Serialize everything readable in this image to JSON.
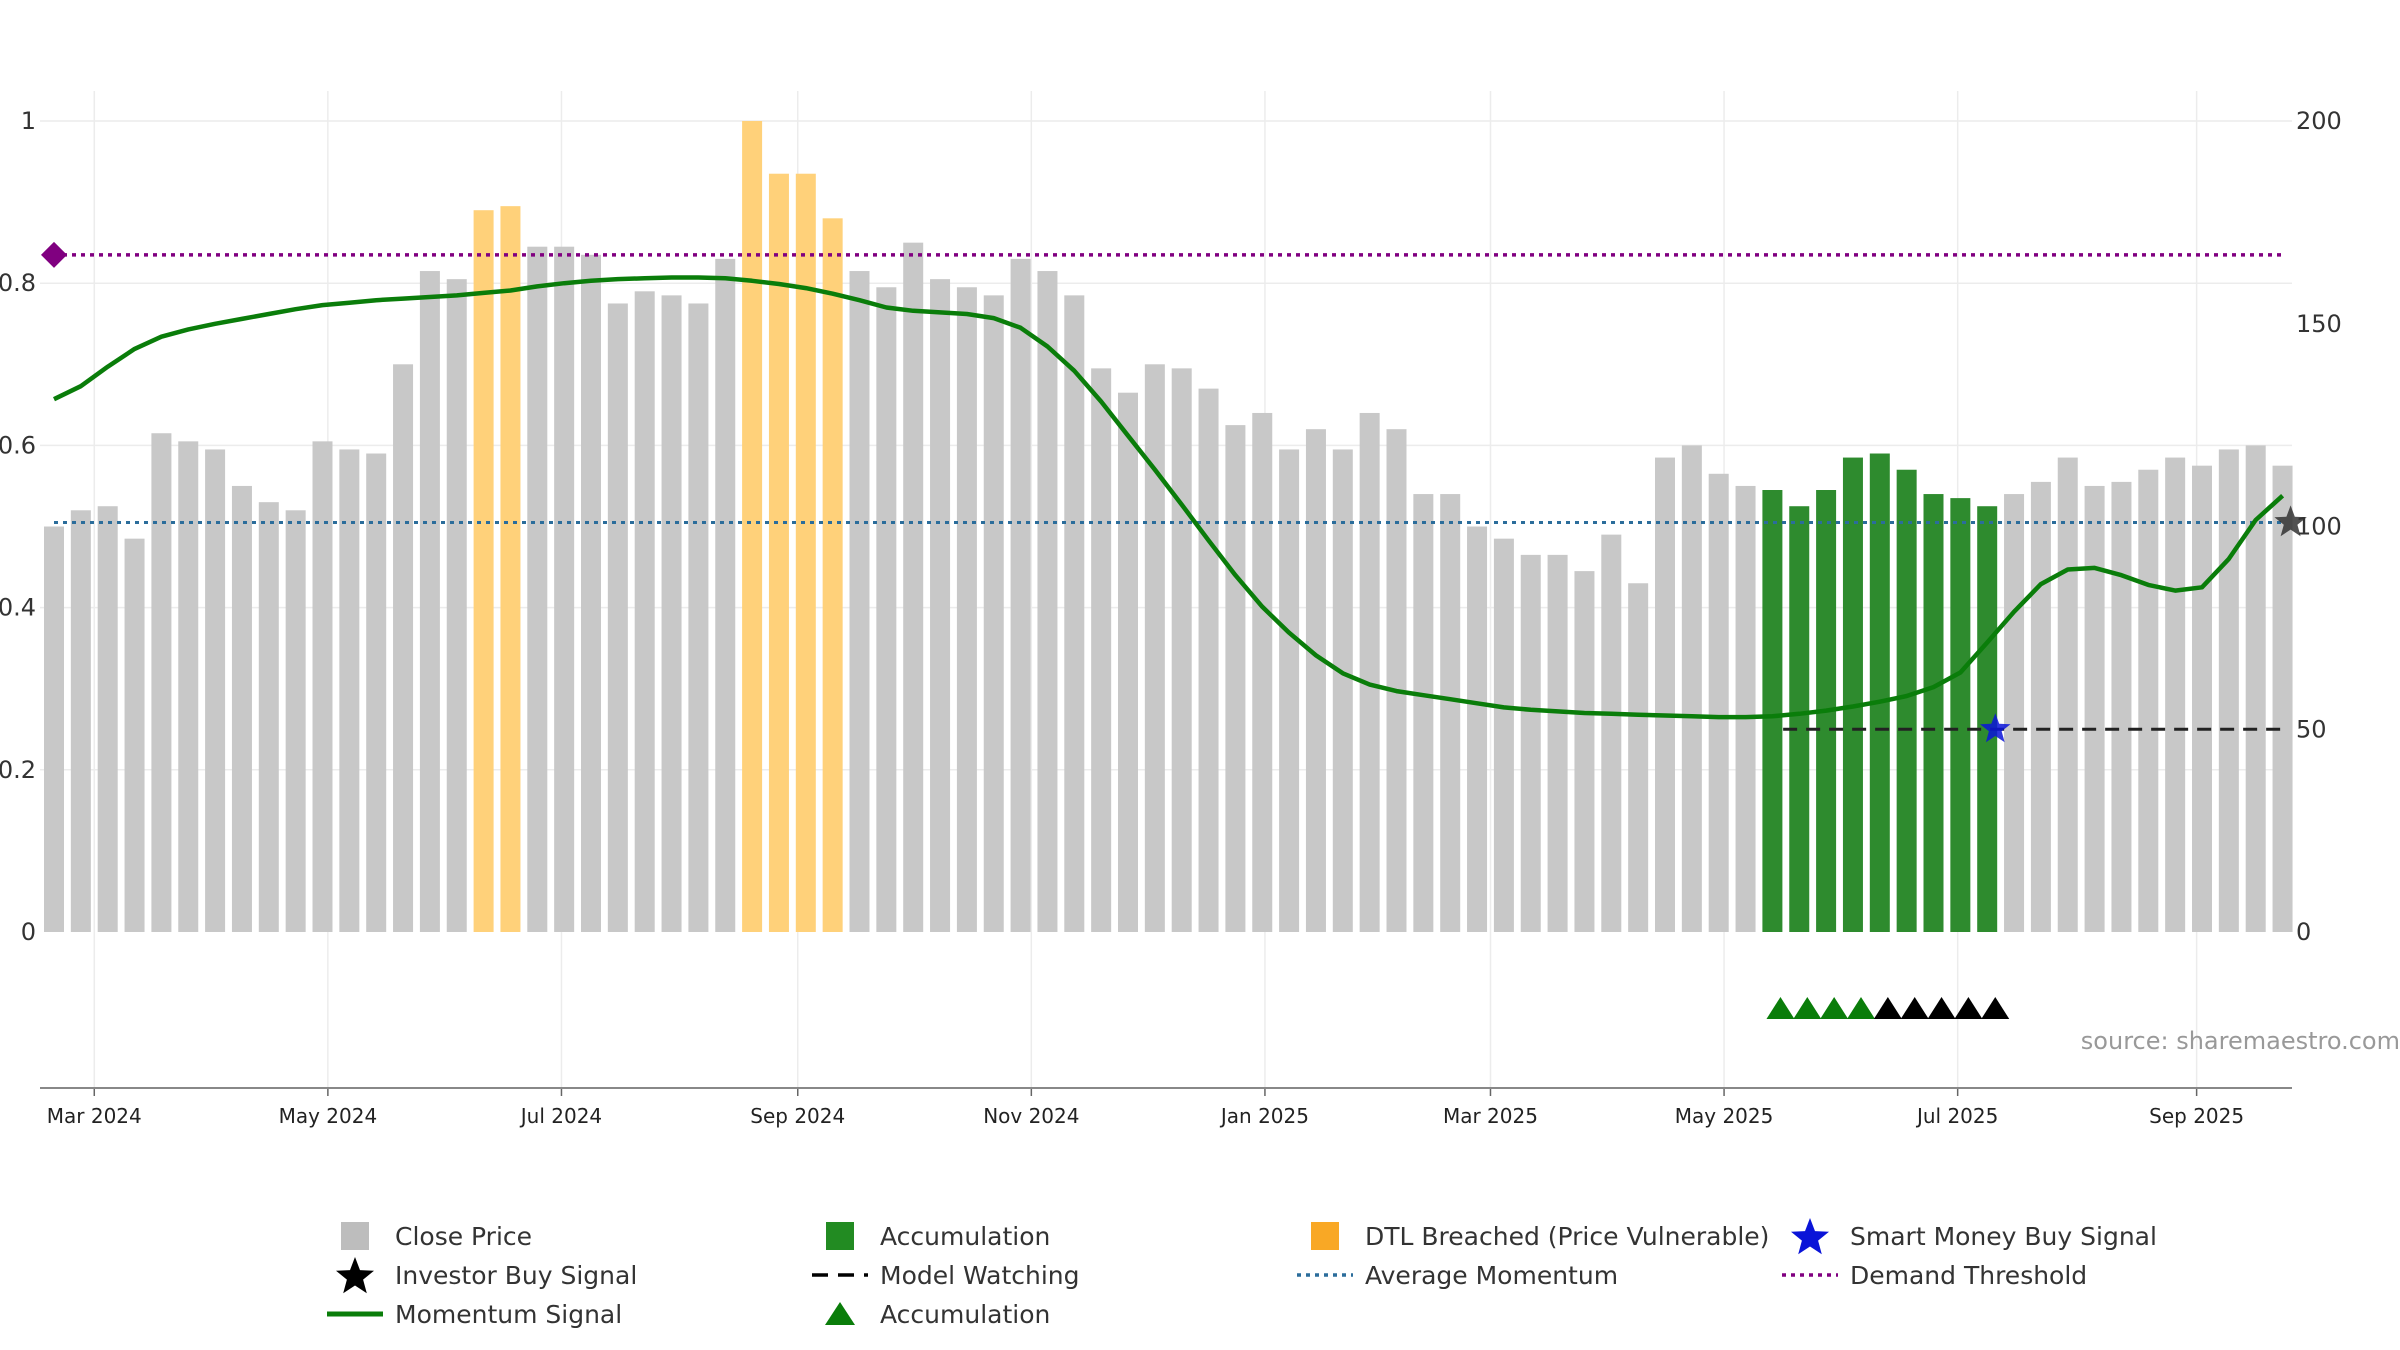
{
  "chart_data": {
    "type": "bar",
    "title": "",
    "xlabel": "",
    "ylabel": "",
    "y_left_lim": [
      0,
      1
    ],
    "y_left_ticks": [
      0,
      0.2,
      0.4,
      0.6,
      0.8,
      1
    ],
    "y_left_tick_labels": [
      "0",
      "0.2",
      "0.4",
      "0.6",
      "0.8",
      "1"
    ],
    "y_right_lim": [
      0,
      200
    ],
    "y_right_ticks": [
      0,
      50,
      100,
      150,
      200
    ],
    "y_right_tick_labels": [
      "0",
      "50",
      "100",
      "150",
      "200"
    ],
    "x_tick_labels": [
      "Mar 2024",
      "May 2024",
      "Jul 2024",
      "Sep 2024",
      "Nov 2024",
      "Jan 2025",
      "Mar 2025",
      "May 2025",
      "Jul 2025",
      "Sep 2025"
    ],
    "x_tick_weeks": [
      1.5,
      10.2,
      18.9,
      27.7,
      36.4,
      45.1,
      53.5,
      62.2,
      70.9,
      79.8
    ],
    "source": "source: sharemaestro.com",
    "grid": true,
    "colors": {
      "close": "#c8c8c8",
      "accumulation": "#2e8b2e",
      "dtl": "#ffd17a",
      "momentum": "#0a7d0a",
      "avg_momentum": "#2b6d9b",
      "demand": "#800080",
      "model_watching": "#222222",
      "smart_money": "#0a14d8",
      "investor": "#000000"
    },
    "close_price": [
      {
        "week": 0,
        "value": 100,
        "status": "normal"
      },
      {
        "week": 1,
        "value": 104,
        "status": "normal"
      },
      {
        "week": 2,
        "value": 105,
        "status": "normal"
      },
      {
        "week": 3,
        "value": 97,
        "status": "normal"
      },
      {
        "week": 4,
        "value": 123,
        "status": "normal"
      },
      {
        "week": 5,
        "value": 121,
        "status": "normal"
      },
      {
        "week": 6,
        "value": 119,
        "status": "normal"
      },
      {
        "week": 7,
        "value": 110,
        "status": "normal"
      },
      {
        "week": 8,
        "value": 106,
        "status": "normal"
      },
      {
        "week": 9,
        "value": 104,
        "status": "normal"
      },
      {
        "week": 10,
        "value": 121,
        "status": "normal"
      },
      {
        "week": 11,
        "value": 119,
        "status": "normal"
      },
      {
        "week": 12,
        "value": 118,
        "status": "normal"
      },
      {
        "week": 13,
        "value": 140,
        "status": "normal"
      },
      {
        "week": 14,
        "value": 163,
        "status": "normal"
      },
      {
        "week": 15,
        "value": 161,
        "status": "normal"
      },
      {
        "week": 16,
        "value": 178,
        "status": "dtl"
      },
      {
        "week": 17,
        "value": 179,
        "status": "dtl"
      },
      {
        "week": 18,
        "value": 169,
        "status": "normal"
      },
      {
        "week": 19,
        "value": 169,
        "status": "normal"
      },
      {
        "week": 20,
        "value": 167,
        "status": "normal"
      },
      {
        "week": 21,
        "value": 155,
        "status": "normal"
      },
      {
        "week": 22,
        "value": 158,
        "status": "normal"
      },
      {
        "week": 23,
        "value": 157,
        "status": "normal"
      },
      {
        "week": 24,
        "value": 155,
        "status": "normal"
      },
      {
        "week": 25,
        "value": 166,
        "status": "normal"
      },
      {
        "week": 26,
        "value": 200,
        "status": "dtl"
      },
      {
        "week": 27,
        "value": 187,
        "status": "dtl"
      },
      {
        "week": 28,
        "value": 187,
        "status": "dtl"
      },
      {
        "week": 29,
        "value": 176,
        "status": "dtl"
      },
      {
        "week": 30,
        "value": 163,
        "status": "normal"
      },
      {
        "week": 31,
        "value": 159,
        "status": "normal"
      },
      {
        "week": 32,
        "value": 170,
        "status": "normal"
      },
      {
        "week": 33,
        "value": 161,
        "status": "normal"
      },
      {
        "week": 34,
        "value": 159,
        "status": "normal"
      },
      {
        "week": 35,
        "value": 157,
        "status": "normal"
      },
      {
        "week": 36,
        "value": 166,
        "status": "normal"
      },
      {
        "week": 37,
        "value": 163,
        "status": "normal"
      },
      {
        "week": 38,
        "value": 157,
        "status": "normal"
      },
      {
        "week": 39,
        "value": 139,
        "status": "normal"
      },
      {
        "week": 40,
        "value": 133,
        "status": "normal"
      },
      {
        "week": 41,
        "value": 140,
        "status": "normal"
      },
      {
        "week": 42,
        "value": 139,
        "status": "normal"
      },
      {
        "week": 43,
        "value": 134,
        "status": "normal"
      },
      {
        "week": 44,
        "value": 125,
        "status": "normal"
      },
      {
        "week": 45,
        "value": 128,
        "status": "normal"
      },
      {
        "week": 46,
        "value": 119,
        "status": "normal"
      },
      {
        "week": 47,
        "value": 124,
        "status": "normal"
      },
      {
        "week": 48,
        "value": 119,
        "status": "normal"
      },
      {
        "week": 49,
        "value": 128,
        "status": "normal"
      },
      {
        "week": 50,
        "value": 124,
        "status": "normal"
      },
      {
        "week": 51,
        "value": 108,
        "status": "normal"
      },
      {
        "week": 52,
        "value": 108,
        "status": "normal"
      },
      {
        "week": 53,
        "value": 100,
        "status": "normal"
      },
      {
        "week": 54,
        "value": 97,
        "status": "normal"
      },
      {
        "week": 55,
        "value": 93,
        "status": "normal"
      },
      {
        "week": 56,
        "value": 93,
        "status": "normal"
      },
      {
        "week": 57,
        "value": 89,
        "status": "normal"
      },
      {
        "week": 58,
        "value": 98,
        "status": "normal"
      },
      {
        "week": 59,
        "value": 86,
        "status": "normal"
      },
      {
        "week": 60,
        "value": 117,
        "status": "normal"
      },
      {
        "week": 61,
        "value": 120,
        "status": "normal"
      },
      {
        "week": 62,
        "value": 113,
        "status": "normal"
      },
      {
        "week": 63,
        "value": 110,
        "status": "normal"
      },
      {
        "week": 64,
        "value": 109,
        "status": "accumulation"
      },
      {
        "week": 65,
        "value": 105,
        "status": "accumulation"
      },
      {
        "week": 66,
        "value": 109,
        "status": "accumulation"
      },
      {
        "week": 67,
        "value": 117,
        "status": "accumulation"
      },
      {
        "week": 68,
        "value": 118,
        "status": "accumulation"
      },
      {
        "week": 69,
        "value": 114,
        "status": "accumulation"
      },
      {
        "week": 70,
        "value": 108,
        "status": "accumulation"
      },
      {
        "week": 71,
        "value": 107,
        "status": "accumulation"
      },
      {
        "week": 72,
        "value": 105,
        "status": "accumulation"
      },
      {
        "week": 73,
        "value": 108,
        "status": "normal"
      },
      {
        "week": 74,
        "value": 111,
        "status": "normal"
      },
      {
        "week": 75,
        "value": 117,
        "status": "normal"
      },
      {
        "week": 76,
        "value": 110,
        "status": "normal"
      },
      {
        "week": 77,
        "value": 111,
        "status": "normal"
      },
      {
        "week": 78,
        "value": 114,
        "status": "normal"
      },
      {
        "week": 79,
        "value": 117,
        "status": "normal"
      },
      {
        "week": 80,
        "value": 115,
        "status": "normal"
      },
      {
        "week": 81,
        "value": 119,
        "status": "normal"
      },
      {
        "week": 82,
        "value": 120,
        "status": "normal"
      },
      {
        "week": 83,
        "value": 115,
        "status": "normal"
      }
    ],
    "momentum_signal": [
      [
        0,
        0.657
      ],
      [
        1,
        0.673
      ],
      [
        2,
        0.697
      ],
      [
        3,
        0.719
      ],
      [
        4,
        0.734
      ],
      [
        5,
        0.743
      ],
      [
        6,
        0.75
      ],
      [
        7,
        0.756
      ],
      [
        8,
        0.762
      ],
      [
        9,
        0.768
      ],
      [
        10,
        0.773
      ],
      [
        11,
        0.776
      ],
      [
        12,
        0.779
      ],
      [
        13,
        0.781
      ],
      [
        14,
        0.783
      ],
      [
        15,
        0.785
      ],
      [
        16,
        0.788
      ],
      [
        17,
        0.791
      ],
      [
        18,
        0.796
      ],
      [
        19,
        0.8
      ],
      [
        20,
        0.803
      ],
      [
        21,
        0.805
      ],
      [
        22,
        0.806
      ],
      [
        23,
        0.807
      ],
      [
        24,
        0.807
      ],
      [
        25,
        0.806
      ],
      [
        26,
        0.803
      ],
      [
        27,
        0.799
      ],
      [
        28,
        0.794
      ],
      [
        29,
        0.787
      ],
      [
        30,
        0.779
      ],
      [
        31,
        0.77
      ],
      [
        32,
        0.766
      ],
      [
        33,
        0.764
      ],
      [
        34,
        0.762
      ],
      [
        35,
        0.757
      ],
      [
        36,
        0.745
      ],
      [
        37,
        0.722
      ],
      [
        38,
        0.692
      ],
      [
        39,
        0.654
      ],
      [
        40,
        0.612
      ],
      [
        41,
        0.57
      ],
      [
        42,
        0.527
      ],
      [
        43,
        0.483
      ],
      [
        44,
        0.44
      ],
      [
        45,
        0.401
      ],
      [
        46,
        0.369
      ],
      [
        47,
        0.341
      ],
      [
        48,
        0.319
      ],
      [
        49,
        0.305
      ],
      [
        50,
        0.297
      ],
      [
        51,
        0.292
      ],
      [
        52,
        0.287
      ],
      [
        53,
        0.282
      ],
      [
        54,
        0.277
      ],
      [
        55,
        0.274
      ],
      [
        56,
        0.272
      ],
      [
        57,
        0.27
      ],
      [
        58,
        0.269
      ],
      [
        59,
        0.268
      ],
      [
        60,
        0.267
      ],
      [
        61,
        0.266
      ],
      [
        62,
        0.265
      ],
      [
        63,
        0.265
      ],
      [
        64,
        0.266
      ],
      [
        65,
        0.269
      ],
      [
        66,
        0.273
      ],
      [
        67,
        0.278
      ],
      [
        68,
        0.284
      ],
      [
        69,
        0.291
      ],
      [
        70,
        0.302
      ],
      [
        71,
        0.32
      ],
      [
        72,
        0.357
      ],
      [
        73,
        0.395
      ],
      [
        74,
        0.429
      ],
      [
        75,
        0.447
      ],
      [
        76,
        0.449
      ],
      [
        77,
        0.44
      ],
      [
        78,
        0.428
      ],
      [
        79,
        0.421
      ],
      [
        80,
        0.425
      ],
      [
        81,
        0.46
      ],
      [
        82,
        0.508
      ],
      [
        83,
        0.538
      ]
    ],
    "average_momentum": 0.505,
    "demand_threshold": 0.835,
    "demand_marker": [
      0,
      0.835
    ],
    "model_watching": {
      "start_week": 64.4,
      "end_week": 83,
      "value": 0.25
    },
    "smart_money_buy_signal": {
      "week": 72.3,
      "value": 0.25
    },
    "investor_buy_signal": {
      "week": 83.3,
      "value": 0.505
    },
    "accumulation_triangles": [
      {
        "week": 64.3,
        "color": "green"
      },
      {
        "week": 65.3,
        "color": "green"
      },
      {
        "week": 66.3,
        "color": "green"
      },
      {
        "week": 67.3,
        "color": "green"
      },
      {
        "week": 68.3,
        "color": "black"
      },
      {
        "week": 69.3,
        "color": "black"
      },
      {
        "week": 70.3,
        "color": "black"
      },
      {
        "week": 71.3,
        "color": "black"
      },
      {
        "week": 72.3,
        "color": "black"
      }
    ],
    "legend": {
      "placement": "bottom",
      "items": [
        {
          "label": "Close Price",
          "symbol": "square",
          "color": "#bdbdbd"
        },
        {
          "label": "Accumulation",
          "symbol": "square",
          "color": "#228b22"
        },
        {
          "label": "DTL Breached (Price Vulnerable)",
          "symbol": "square",
          "color": "#f9a825"
        },
        {
          "label": "Smart Money Buy Signal",
          "symbol": "star",
          "color": "#0a14d8"
        },
        {
          "label": "Investor Buy Signal",
          "symbol": "star",
          "color": "#000000"
        },
        {
          "label": "Model Watching",
          "symbol": "dash",
          "color": "#000000"
        },
        {
          "label": "Average Momentum",
          "symbol": "dot",
          "color": "#2b6d9b"
        },
        {
          "label": "Demand Threshold",
          "symbol": "dot",
          "color": "#800080"
        },
        {
          "label": "Momentum Signal",
          "symbol": "line",
          "color": "#0a7d0a"
        },
        {
          "label": "Accumulation",
          "symbol": "triangle",
          "color": "#0a7d0a"
        }
      ]
    }
  }
}
